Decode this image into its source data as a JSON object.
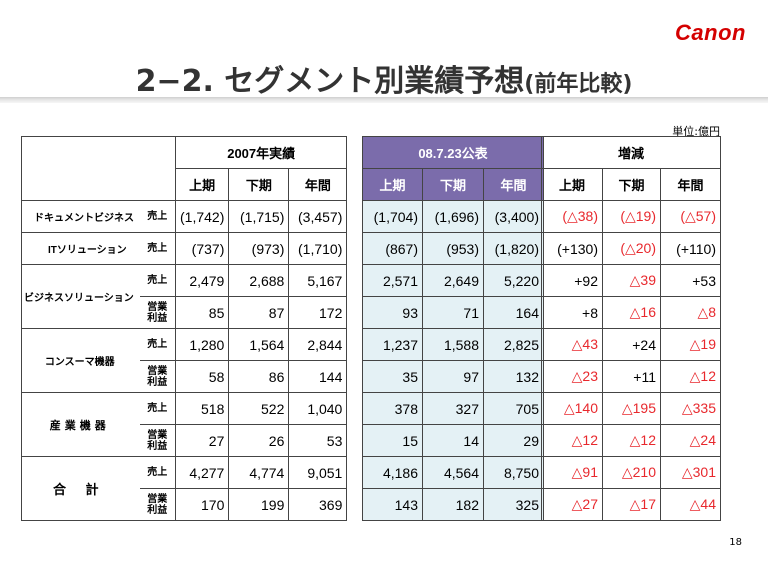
{
  "logo": "Canon",
  "title": "2−2. セグメント別業績予想",
  "title_sub": "(前年比較)",
  "unit": "単位:億円",
  "page_number": "18",
  "header": {
    "actual_2007": "2007年実績",
    "forecast": "08.7.23公表",
    "change": "増減",
    "h1": "上期",
    "h2": "下期",
    "year": "年間"
  },
  "rows": [
    {
      "segment": "ドキュメントビジネス",
      "item": "売上",
      "actual": [
        "(1,742)",
        "(1,715)",
        "(3,457)"
      ],
      "forecast": [
        "(1,704)",
        "(1,696)",
        "(3,400)"
      ],
      "change": [
        "(△38)",
        "(△19)",
        "(△57)"
      ]
    },
    {
      "segment": "ITソリューション",
      "item": "売上",
      "actual": [
        "(737)",
        "(973)",
        "(1,710)"
      ],
      "forecast": [
        "(867)",
        "(953)",
        "(1,820)"
      ],
      "change": [
        "(+130)",
        "(△20)",
        "(+110)"
      ]
    },
    {
      "segment": "ビジネスソリューション",
      "item": "売上",
      "actual": [
        "2,479",
        "2,688",
        "5,167"
      ],
      "forecast": [
        "2,571",
        "2,649",
        "5,220"
      ],
      "change": [
        "+92",
        "△39",
        "+53"
      ]
    },
    {
      "item_line1": "営業",
      "item_line2": "利益",
      "actual": [
        "85",
        "87",
        "172"
      ],
      "forecast": [
        "93",
        "71",
        "164"
      ],
      "change": [
        "+8",
        "△16",
        "△8"
      ]
    },
    {
      "segment": "コンスーマ機器",
      "item": "売上",
      "actual": [
        "1,280",
        "1,564",
        "2,844"
      ],
      "forecast": [
        "1,237",
        "1,588",
        "2,825"
      ],
      "change": [
        "△43",
        "+24",
        "△19"
      ]
    },
    {
      "item_line1": "営業",
      "item_line2": "利益",
      "actual": [
        "58",
        "86",
        "144"
      ],
      "forecast": [
        "35",
        "97",
        "132"
      ],
      "change": [
        "△23",
        "+11",
        "△12"
      ]
    },
    {
      "segment": "産業機器",
      "item": "売上",
      "actual": [
        "518",
        "522",
        "1,040"
      ],
      "forecast": [
        "378",
        "327",
        "705"
      ],
      "change": [
        "△140",
        "△195",
        "△335"
      ]
    },
    {
      "item_line1": "営業",
      "item_line2": "利益",
      "actual": [
        "27",
        "26",
        "53"
      ],
      "forecast": [
        "15",
        "14",
        "29"
      ],
      "change": [
        "△12",
        "△12",
        "△24"
      ]
    },
    {
      "segment": "合 計",
      "item": "売上",
      "actual": [
        "4,277",
        "4,774",
        "9,051"
      ],
      "forecast": [
        "4,186",
        "4,564",
        "8,750"
      ],
      "change": [
        "△91",
        "△210",
        "△301"
      ]
    },
    {
      "item_line1": "営業",
      "item_line2": "利益",
      "actual": [
        "170",
        "199",
        "369"
      ],
      "forecast": [
        "143",
        "182",
        "325"
      ],
      "change": [
        "△27",
        "△17",
        "△44"
      ]
    }
  ],
  "colors": {
    "forecast_header": "#7b6cab",
    "forecast_cell": "#e4f1f5",
    "negative": "#e8282d",
    "logo": "#d40000"
  }
}
